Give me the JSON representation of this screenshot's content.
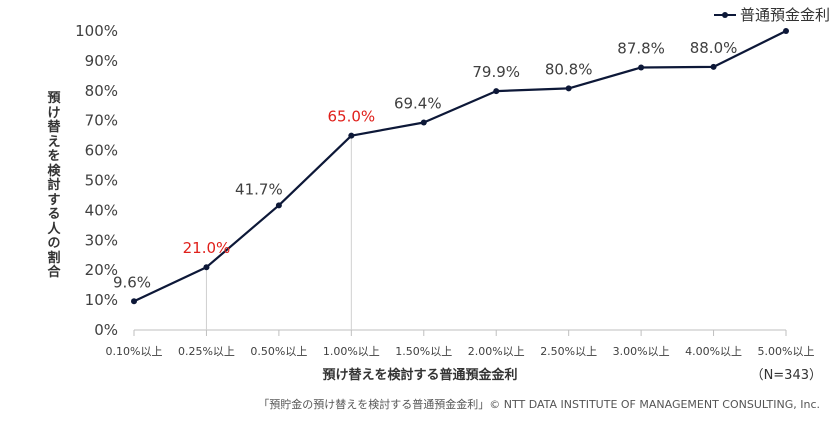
{
  "chart_data": {
    "type": "line",
    "categories": [
      "0.10%以上",
      "0.25%以上",
      "0.50%以上",
      "1.00%以上",
      "1.50%以上",
      "2.00%以上",
      "2.50%以上",
      "3.00%以上",
      "4.00%以上",
      "5.00%以上"
    ],
    "series": [
      {
        "name": "普通預金金利",
        "values": [
          9.6,
          21.0,
          41.7,
          65.0,
          69.4,
          79.9,
          80.8,
          87.8,
          88.0,
          100.0
        ],
        "color": "#0d1838"
      }
    ],
    "data_labels": [
      "9.6%",
      "21.0%",
      "41.7%",
      "65.0%",
      "69.4%",
      "79.9%",
      "80.8%",
      "87.8%",
      "88.0%",
      ""
    ],
    "highlight_indices": [
      1,
      3
    ],
    "highlight_color": "#e0201b",
    "yticks": [
      "0%",
      "10%",
      "20%",
      "30%",
      "40%",
      "50%",
      "60%",
      "70%",
      "80%",
      "90%",
      "100%"
    ],
    "ylim": [
      0,
      100
    ],
    "xlabel": "預け替えを検討する普通預金金利",
    "ylabel": "預け替えを検討する人の割合",
    "legend": "top-right",
    "grid": false
  },
  "legend_label": "普通預金金利",
  "sample_note": "（N=343）",
  "source": "「預貯金の預け替えを検討する普通預金金利」© NTT DATA INSTITUTE OF MANAGEMENT CONSULTING, Inc."
}
